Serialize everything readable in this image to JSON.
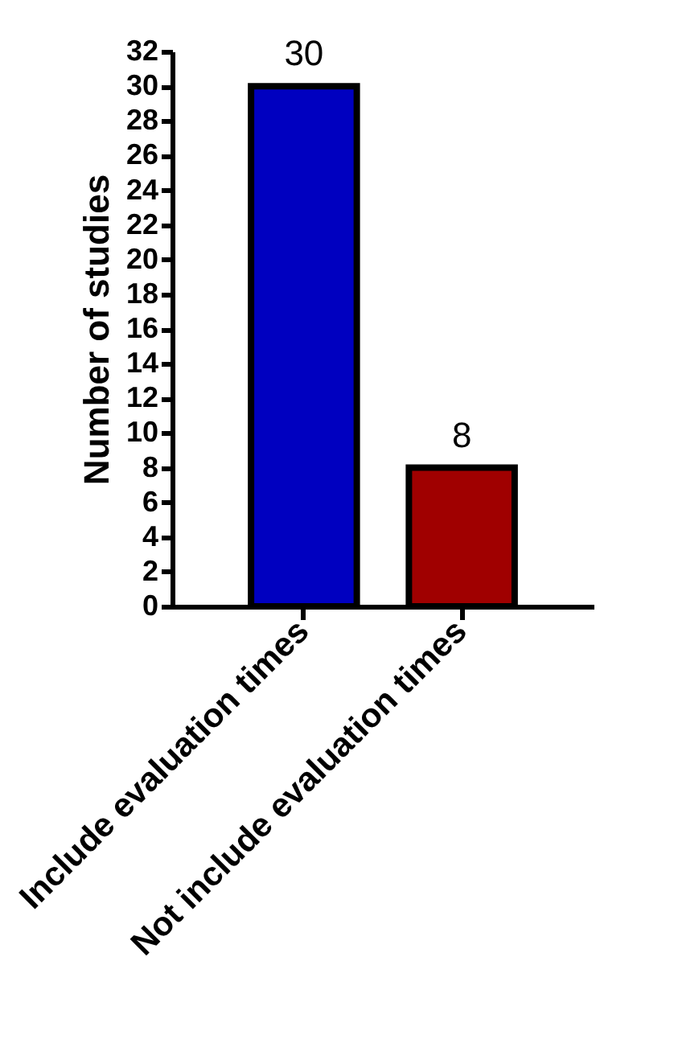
{
  "chart_data": {
    "type": "bar",
    "ylabel": "Number of studies",
    "categories": [
      "Include evaluation times",
      "Not include evaluation times"
    ],
    "values": [
      30,
      8
    ],
    "colors": [
      "#0000c0",
      "#a00000"
    ],
    "ylim": [
      0,
      32
    ],
    "yticks": [
      0,
      2,
      4,
      6,
      8,
      10,
      12,
      14,
      16,
      18,
      20,
      22,
      24,
      26,
      28,
      30,
      32
    ],
    "data_labels": true,
    "grid": false,
    "legend": false
  }
}
